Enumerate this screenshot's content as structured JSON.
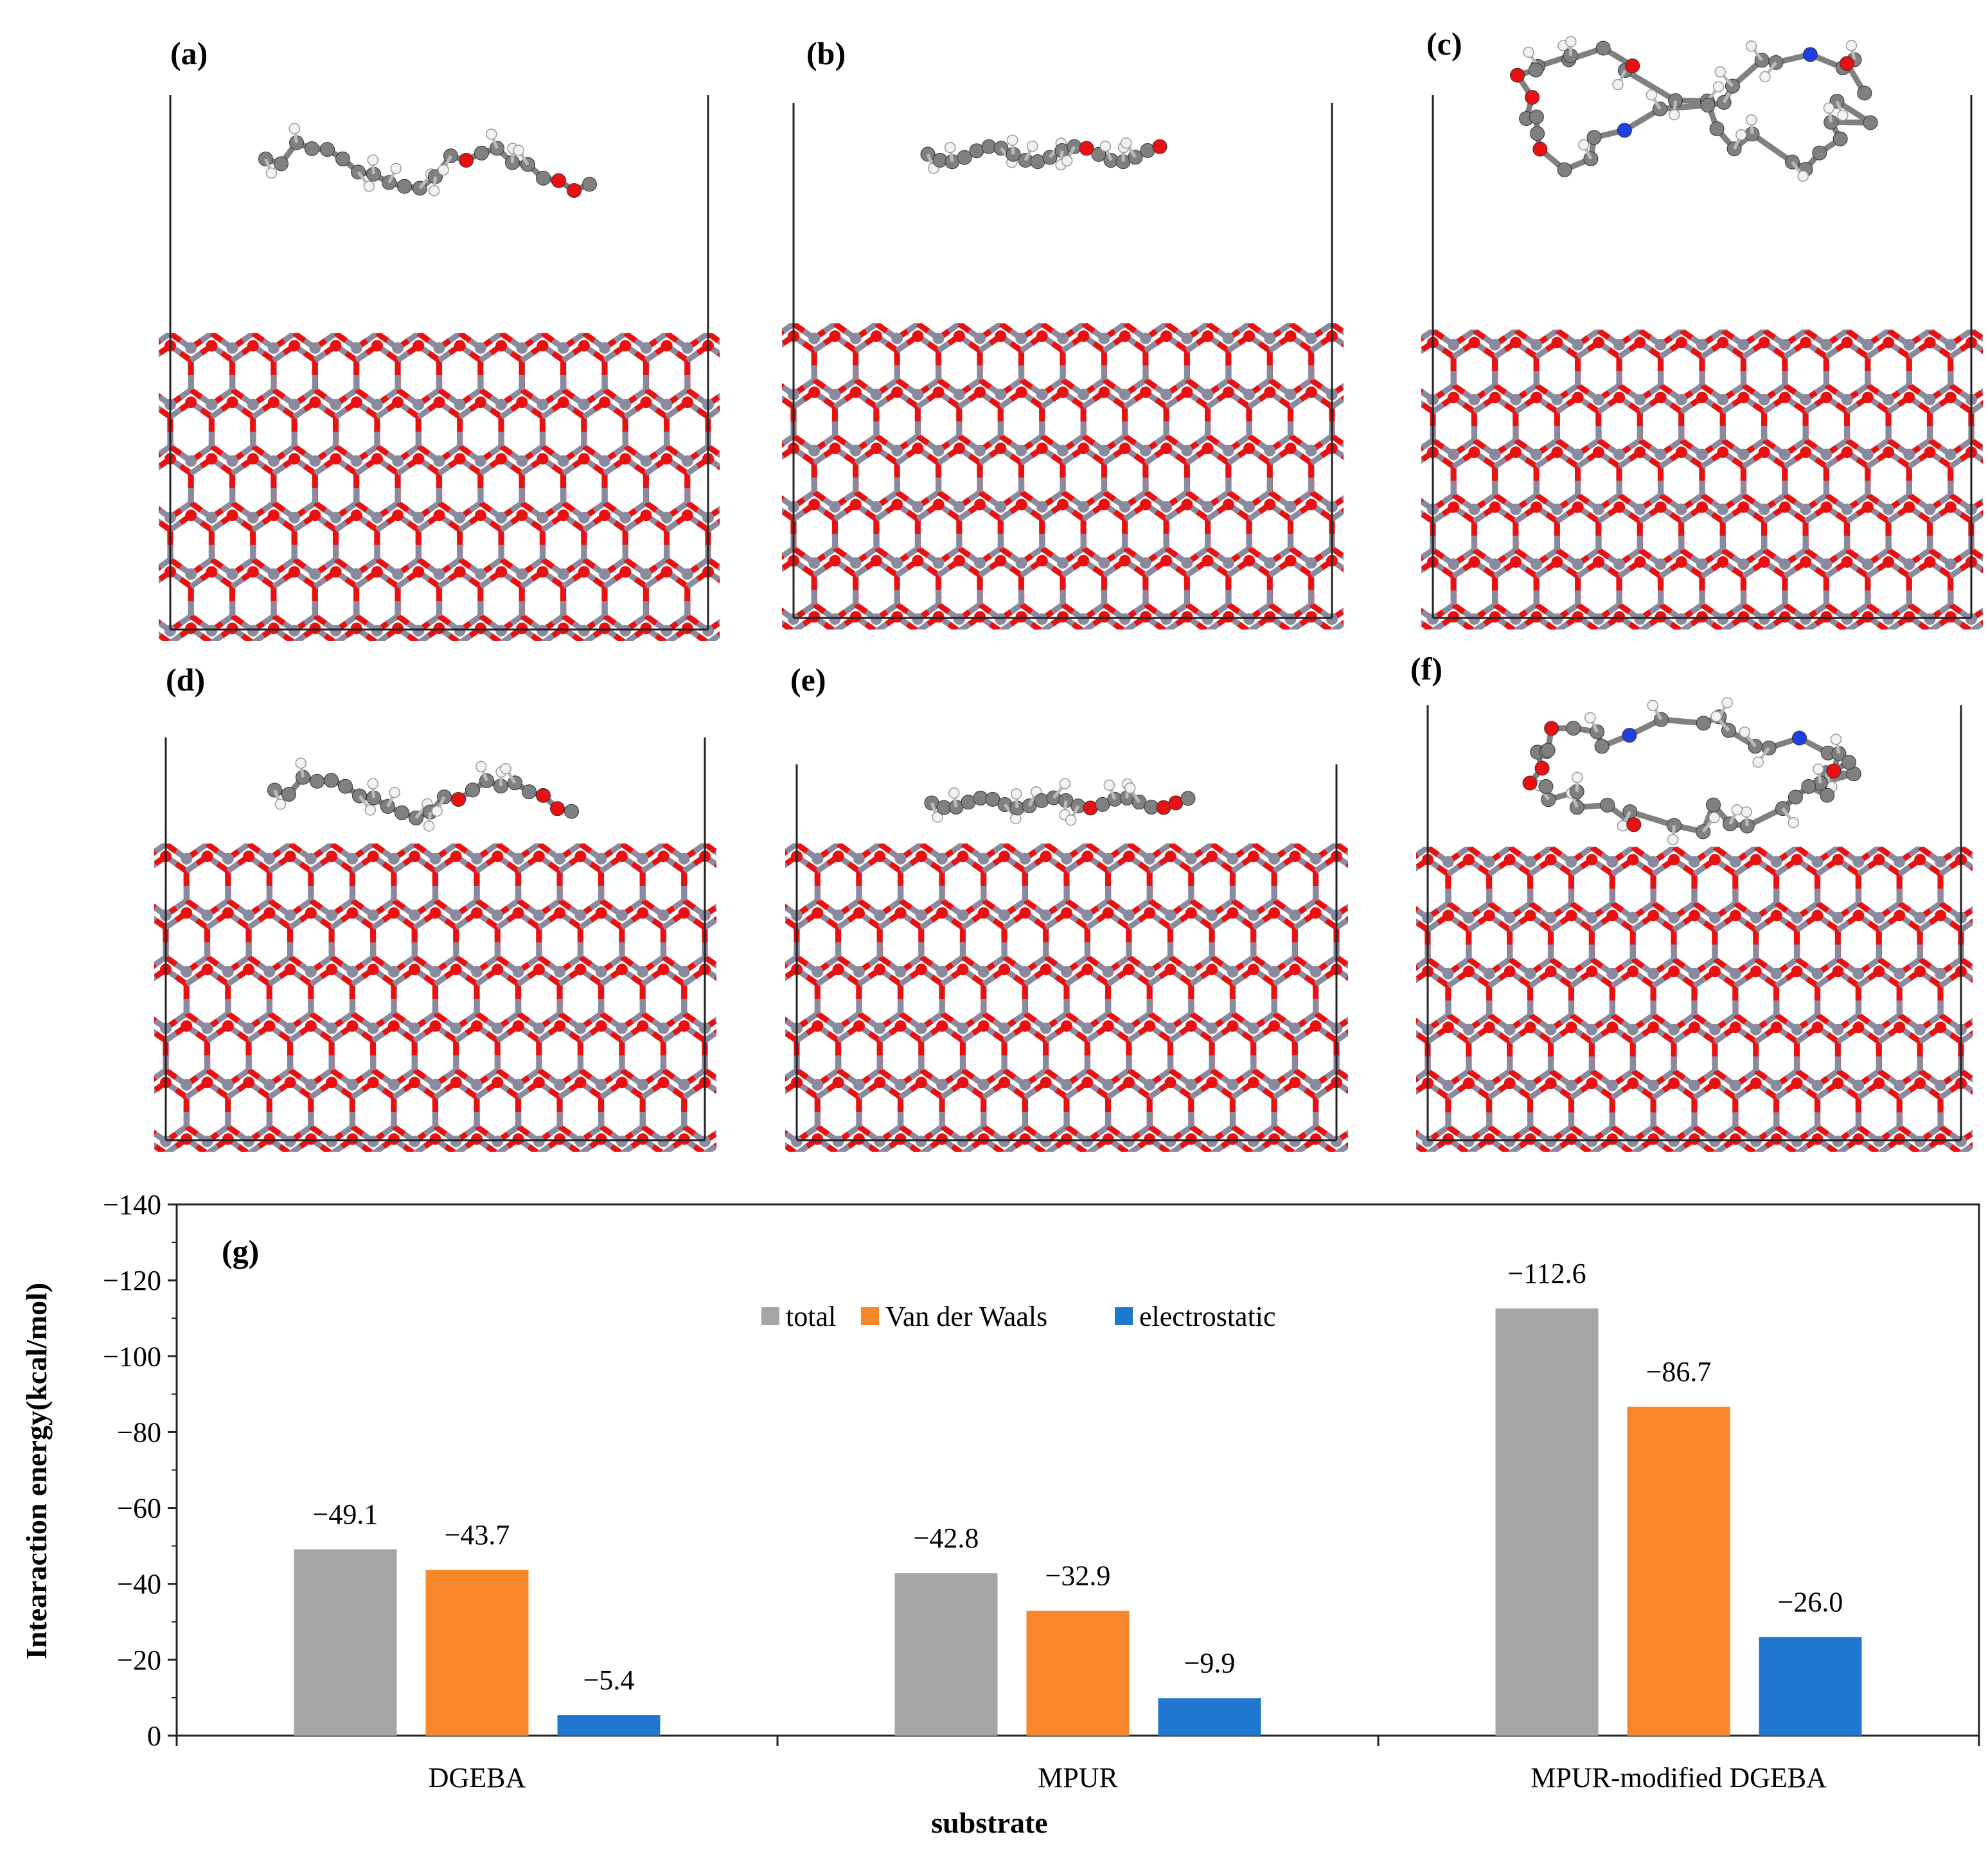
{
  "panels": [
    {
      "label": "(a)",
      "molecule": "DGEBA",
      "orientation": "side"
    },
    {
      "label": "(b)",
      "molecule": "MPUR",
      "orientation": "side"
    },
    {
      "label": "(c)",
      "molecule": "MPUR-modified DGEBA",
      "orientation": "side"
    },
    {
      "label": "(d)",
      "molecule": "DGEBA",
      "orientation": "adsorbed"
    },
    {
      "label": "(e)",
      "molecule": "MPUR",
      "orientation": "adsorbed"
    },
    {
      "label": "(f)",
      "molecule": "MPUR-modified DGEBA",
      "orientation": "adsorbed"
    }
  ],
  "colors": {
    "surface_oxygen": "#e81010",
    "surface_metal": "#8a8a9e",
    "carbon": "#808080",
    "hydrogen": "#f2f2f2",
    "oxygen": "#e81010",
    "nitrogen": "#1f3fe0",
    "total": "#a5a5a5",
    "vdw": "#f8862a",
    "electrostatic": "#1f77d0"
  },
  "chart_data": {
    "type": "bar",
    "panel_label": "(g)",
    "categories": [
      "DGEBA",
      "MPUR",
      "MPUR-modified DGEBA"
    ],
    "series": [
      {
        "name": "total",
        "values": [
          -49.1,
          -42.8,
          -112.6
        ],
        "labels": [
          "−49.1",
          "−42.8",
          "−112.6"
        ]
      },
      {
        "name": "Van der Waals",
        "values": [
          -43.7,
          -32.9,
          -86.7
        ],
        "labels": [
          "−43.7",
          "−32.9",
          "−86.7"
        ]
      },
      {
        "name": "electrostatic",
        "values": [
          -5.4,
          -9.9,
          -26.0
        ],
        "labels": [
          "−5.4",
          "−9.9",
          "−26.0"
        ]
      }
    ],
    "xlabel": "substrate",
    "ylabel": "Intearaction energy(kcal/mol)",
    "ylim": [
      0,
      -140
    ],
    "yticks": [
      0,
      -20,
      -40,
      -60,
      -80,
      -100,
      -120,
      -140
    ],
    "ytick_labels": [
      "0",
      "−20",
      "−40",
      "−60",
      "−80",
      "−100",
      "−120",
      "−140"
    ],
    "y_axis_inverted": true,
    "legend_position": "top-center"
  }
}
